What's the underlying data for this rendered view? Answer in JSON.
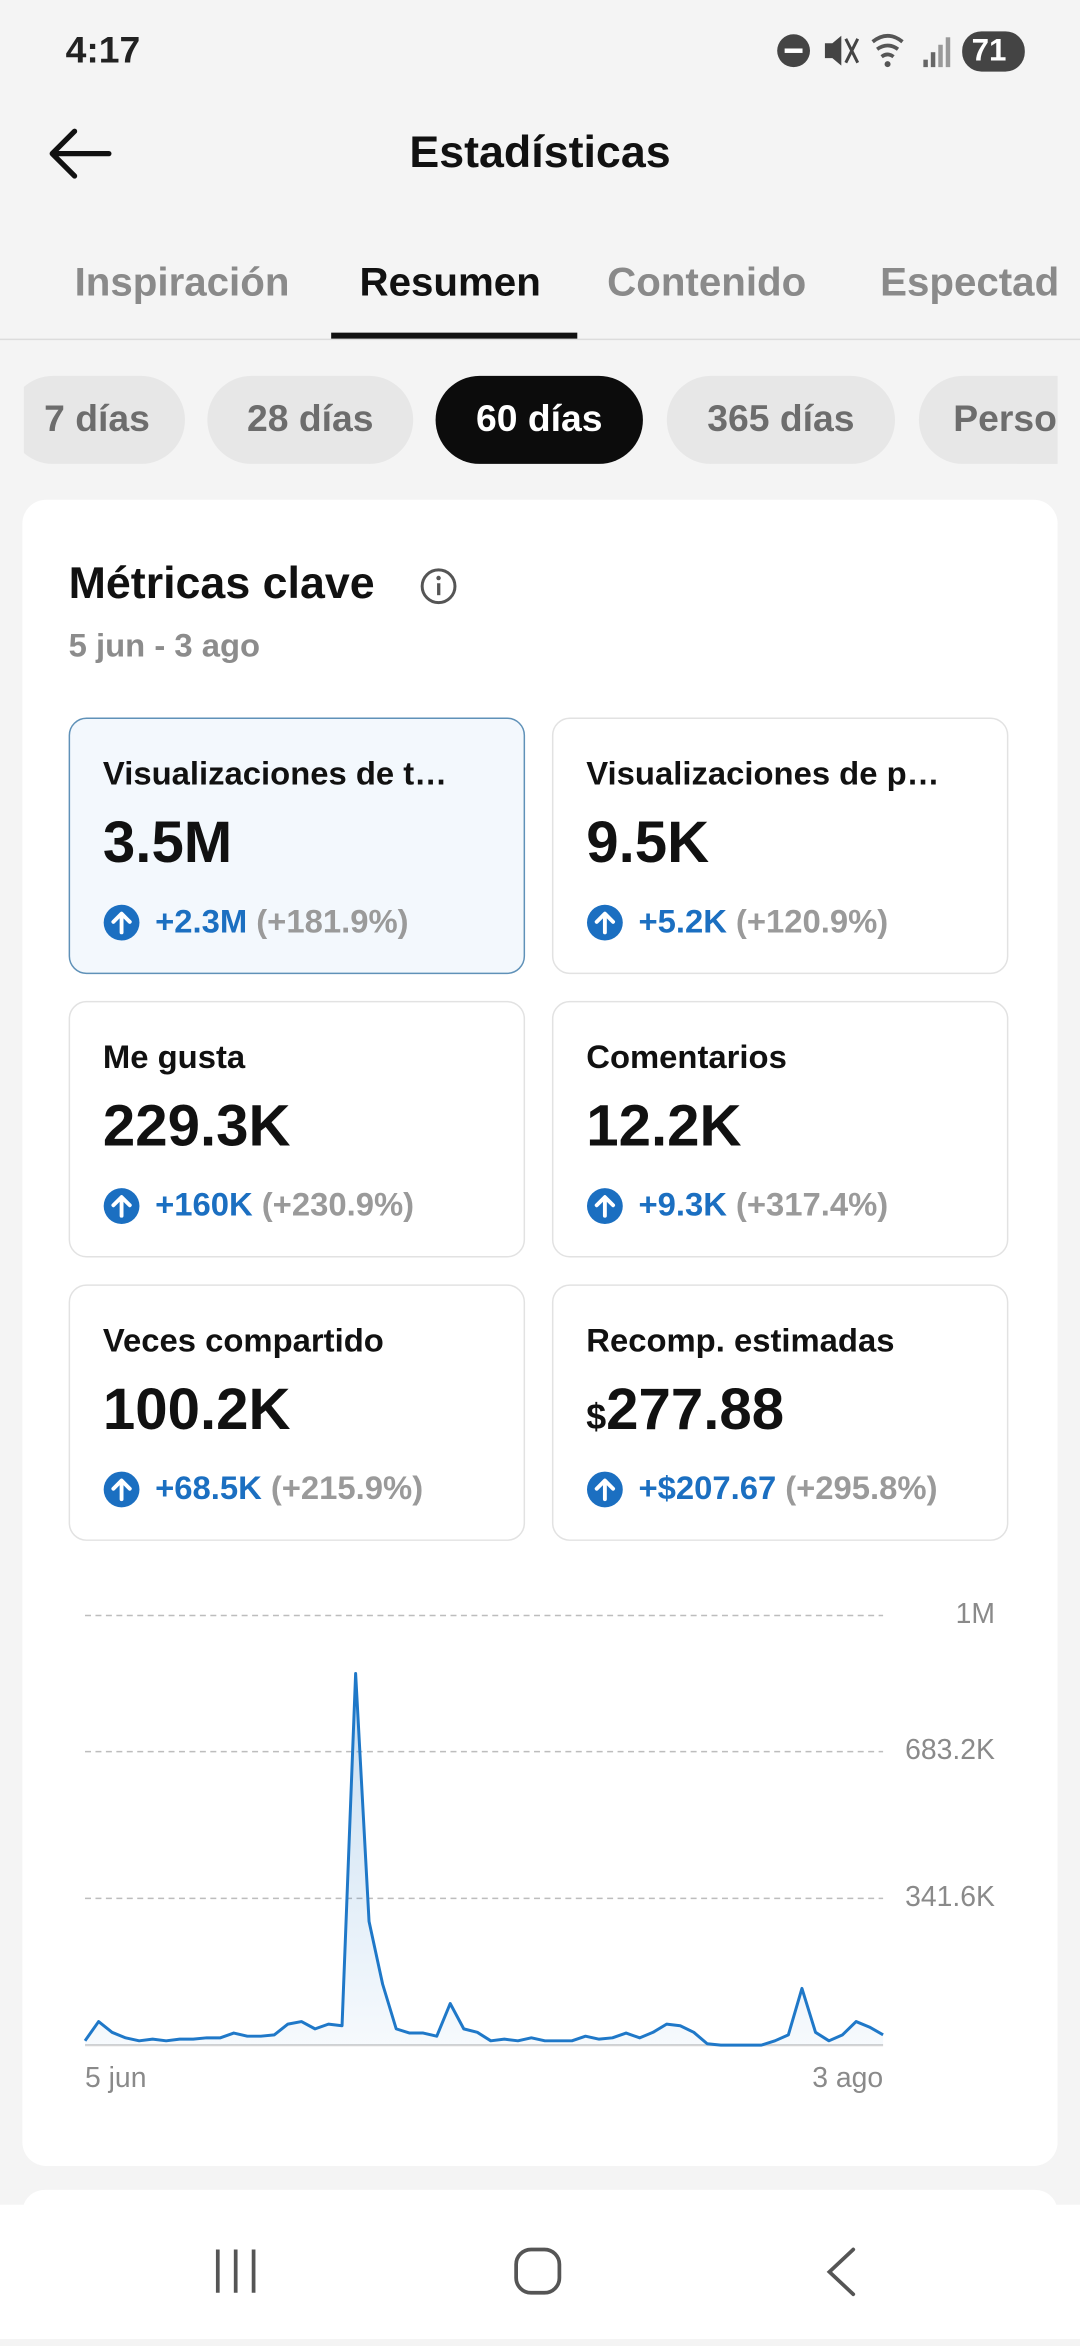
{
  "status_bar": {
    "time": "4:17",
    "battery": "71"
  },
  "header": {
    "title": "Estadísticas"
  },
  "tabs": {
    "items": [
      "Inspiración",
      "Resumen",
      "Contenido",
      "Espectad"
    ],
    "selected": 1
  },
  "periods": {
    "items": [
      "7 días",
      "28 días",
      "60 días",
      "365 días",
      "Perso"
    ],
    "selected": 2
  },
  "card": {
    "title": "Métricas clave",
    "date_range": "5 jun - 3 ago"
  },
  "metrics": [
    {
      "label": "Visualizaciones de t…",
      "value": "3.5M",
      "change": "+2.3M",
      "percent": "(+181.9%)",
      "selected": true
    },
    {
      "label": "Visualizaciones de p…",
      "value": "9.5K",
      "change": "+5.2K",
      "percent": "(+120.9%)"
    },
    {
      "label": "Me gusta",
      "value": "229.3K",
      "change": "+160K",
      "percent": "(+230.9%)"
    },
    {
      "label": "Comentarios",
      "value": "12.2K",
      "change": "+9.3K",
      "percent": "(+317.4%)"
    },
    {
      "label": "Veces compartido",
      "value": "100.2K",
      "change": "+68.5K",
      "percent": "(+215.9%)"
    },
    {
      "label": "Recomp. estimadas",
      "currency": "$",
      "value": "277.88",
      "change": "+$207.67",
      "percent": "(+295.8%)"
    }
  ],
  "chart_data": {
    "type": "line",
    "color": "#1f78c8",
    "grid": true,
    "categories": [
      "5 jun",
      null,
      null,
      null,
      null,
      null,
      null,
      null,
      null,
      null,
      null,
      null,
      null,
      null,
      null,
      null,
      null,
      null,
      null,
      null,
      null,
      null,
      null,
      null,
      null,
      null,
      null,
      null,
      null,
      null,
      null,
      null,
      null,
      null,
      null,
      null,
      null,
      null,
      null,
      null,
      null,
      null,
      null,
      null,
      null,
      null,
      null,
      null,
      null,
      null,
      null,
      null,
      null,
      null,
      null,
      null,
      null,
      null,
      null,
      "3 ago"
    ],
    "values": [
      10000,
      55000,
      30000,
      17000,
      10000,
      14000,
      10000,
      14000,
      14000,
      17000,
      17000,
      28000,
      21000,
      21000,
      24000,
      49000,
      55000,
      38000,
      49000,
      45000,
      865000,
      288000,
      142000,
      38000,
      28000,
      28000,
      21000,
      97000,
      38000,
      30000,
      10000,
      14000,
      10000,
      17000,
      10000,
      10000,
      10000,
      21000,
      14000,
      17000,
      28000,
      17000,
      30000,
      49000,
      45000,
      30000,
      3000,
      0,
      0,
      0,
      0,
      10000,
      24000,
      132000,
      30000,
      10000,
      24000,
      55000,
      42000,
      24000
    ],
    "ylim": [
      0,
      1000000
    ],
    "yticks": [
      {
        "value": 341600,
        "label": "341.6K"
      },
      {
        "value": 683200,
        "label": "683.2K"
      },
      {
        "value": 1000000,
        "label": "1M"
      }
    ]
  }
}
